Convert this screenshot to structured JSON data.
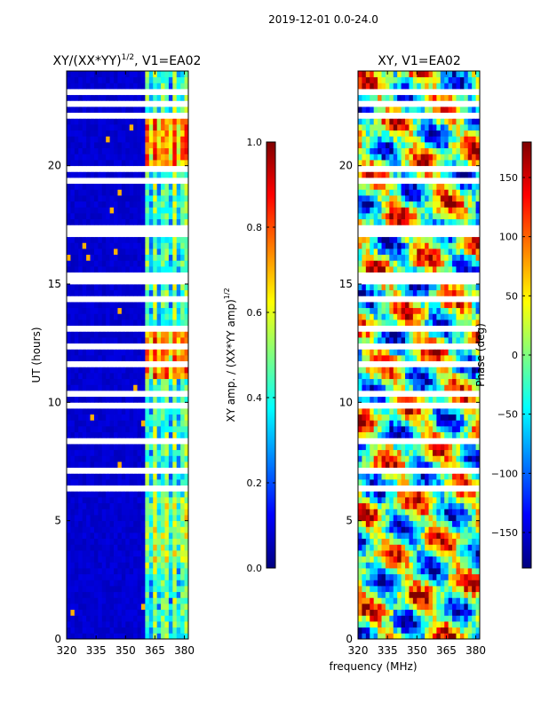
{
  "suptitle": "2019-12-01 0.0-24.0",
  "colors": {
    "jet_stops": [
      "#00007f",
      "#0000ff",
      "#007fff",
      "#00ffff",
      "#7fff7f",
      "#ffff00",
      "#ff7f00",
      "#ff0000",
      "#7f0000"
    ]
  },
  "chart_data": [
    {
      "type": "heatmap",
      "title": "XY/(XX*YY)^{1/2}, V1=EA02",
      "title_main": "XY/(XX*YY)",
      "title_sup": "1/2",
      "title_tail": ", V1=EA02",
      "xlabel": "",
      "ylabel": "UT (hours)",
      "xlim": [
        320,
        382
      ],
      "ylim": [
        0,
        24
      ],
      "x_ticks": [
        320,
        335,
        350,
        365,
        380
      ],
      "y_ticks": [
        0,
        5,
        10,
        15,
        20
      ],
      "colorbar": {
        "label": "XY amp. / (XX*YY amp)^{1/2}",
        "label_main": "XY amp. / (XX*YY amp)",
        "label_sup": "1/2",
        "range": [
          0.0,
          1.0
        ],
        "ticks": [
          0.0,
          0.2,
          0.4,
          0.6,
          0.8,
          1.0
        ],
        "tick_labels": [
          "0.0",
          "0.2",
          "0.4",
          "0.6",
          "0.8",
          "1.0"
        ]
      },
      "summary": "Amplitude ratio mostly low (~0.05) below 360 MHz; elevated band 360-380 MHz with vertical striping reaching 0.4-0.9, strongest near 11-13 h and 20-22 h; white horizontal gaps of flagged data across many hours."
    },
    {
      "type": "heatmap",
      "title": "XY, V1=EA02",
      "xlabel": "frequency (MHz)",
      "ylabel": "",
      "xlim": [
        320,
        382
      ],
      "ylim": [
        0,
        24
      ],
      "x_ticks": [
        320,
        335,
        350,
        365,
        380
      ],
      "y_ticks": [
        0,
        5,
        10,
        15,
        20
      ],
      "colorbar": {
        "label": "Phase (deg)",
        "range": [
          -180,
          180
        ],
        "ticks": [
          150,
          100,
          50,
          0,
          -50,
          -100,
          -150
        ],
        "tick_labels": [
          "150",
          "100",
          "50",
          "0",
          "−50",
          "−100",
          "−150"
        ]
      },
      "summary": "XY phase spans the full -180 to 180 degree range with noisy, wrapped structure across all frequencies and times; same flagged white gaps as the amplitude panel."
    }
  ]
}
